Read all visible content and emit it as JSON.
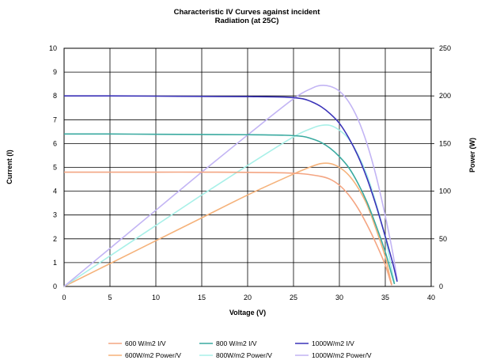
{
  "chart_data": {
    "type": "line",
    "title": "Characteristic IV Curves against incident",
    "subtitle": "Radiation (at 25C)",
    "xlabel": "Voltage (V)",
    "ylabel": "Current (I)",
    "y2label": "Power (W)",
    "xlim": [
      0,
      40
    ],
    "ylim": [
      0,
      10
    ],
    "y2lim": [
      0,
      250
    ],
    "xticks": [
      "0",
      "5",
      "10",
      "15",
      "20",
      "25",
      "30",
      "35",
      "40"
    ],
    "yticks": [
      "0",
      "1",
      "2",
      "3",
      "4",
      "5",
      "6",
      "7",
      "8",
      "9",
      "10"
    ],
    "y2ticks": [
      "0",
      "50",
      "100",
      "150",
      "200",
      "250"
    ],
    "grid": true,
    "legend_position": "bottom",
    "series": [
      {
        "name": "600 W/m2 I/V",
        "axis": "left",
        "color": "#f4a582",
        "points": [
          [
            0,
            4.8
          ],
          [
            5,
            4.8
          ],
          [
            10,
            4.8
          ],
          [
            15,
            4.8
          ],
          [
            20,
            4.79
          ],
          [
            24,
            4.77
          ],
          [
            26,
            4.73
          ],
          [
            28,
            4.62
          ],
          [
            29,
            4.5
          ],
          [
            30,
            4.25
          ],
          [
            31,
            3.85
          ],
          [
            32,
            3.3
          ],
          [
            33,
            2.6
          ],
          [
            34,
            1.8
          ],
          [
            35,
            0.9
          ],
          [
            35.5,
            0.3
          ],
          [
            35.7,
            0.05
          ]
        ]
      },
      {
        "name": "800 W/m2 I/V",
        "axis": "left",
        "color": "#3aaaa0",
        "points": [
          [
            0,
            6.4
          ],
          [
            5,
            6.4
          ],
          [
            10,
            6.39
          ],
          [
            15,
            6.38
          ],
          [
            20,
            6.37
          ],
          [
            24,
            6.35
          ],
          [
            26,
            6.3
          ],
          [
            27,
            6.2
          ],
          [
            28,
            6.05
          ],
          [
            29,
            5.8
          ],
          [
            30,
            5.45
          ],
          [
            31,
            5.0
          ],
          [
            32,
            4.35
          ],
          [
            33,
            3.55
          ],
          [
            34,
            2.55
          ],
          [
            35,
            1.45
          ],
          [
            35.7,
            0.5
          ],
          [
            36,
            0.1
          ]
        ]
      },
      {
        "name": "1000W/m2 I/V",
        "axis": "left",
        "color": "#3a32b8",
        "points": [
          [
            0,
            8.0
          ],
          [
            5,
            8.0
          ],
          [
            10,
            7.99
          ],
          [
            15,
            7.98
          ],
          [
            20,
            7.97
          ],
          [
            24,
            7.95
          ],
          [
            26,
            7.88
          ],
          [
            27,
            7.75
          ],
          [
            28,
            7.55
          ],
          [
            29,
            7.25
          ],
          [
            30,
            6.85
          ],
          [
            31,
            6.25
          ],
          [
            32,
            5.5
          ],
          [
            33,
            4.55
          ],
          [
            34,
            3.4
          ],
          [
            35,
            2.1
          ],
          [
            35.8,
            1.0
          ],
          [
            36.3,
            0.2
          ]
        ]
      },
      {
        "name": "600W/m2 Power/V",
        "axis": "right",
        "color": "#f5b27a",
        "points": [
          [
            0,
            0
          ],
          [
            5,
            24
          ],
          [
            10,
            48
          ],
          [
            15,
            72
          ],
          [
            20,
            96
          ],
          [
            25,
            118
          ],
          [
            27,
            126
          ],
          [
            28,
            129
          ],
          [
            29,
            129
          ],
          [
            30,
            125
          ],
          [
            31,
            117
          ],
          [
            32,
            104
          ],
          [
            33,
            86
          ],
          [
            34,
            60
          ],
          [
            35,
            31
          ],
          [
            35.5,
            10
          ],
          [
            35.7,
            2
          ]
        ]
      },
      {
        "name": "800W/m2 Power/V",
        "axis": "right",
        "color": "#a8f0e8",
        "points": [
          [
            0,
            0
          ],
          [
            5,
            32
          ],
          [
            10,
            64
          ],
          [
            15,
            96
          ],
          [
            20,
            127
          ],
          [
            25,
            157
          ],
          [
            27,
            166
          ],
          [
            28,
            169
          ],
          [
            29,
            169
          ],
          [
            30,
            164
          ],
          [
            31,
            155
          ],
          [
            32,
            139
          ],
          [
            33,
            117
          ],
          [
            34,
            87
          ],
          [
            35,
            51
          ],
          [
            35.7,
            18
          ],
          [
            36,
            4
          ]
        ]
      },
      {
        "name": "1000W/m2 Power/V",
        "axis": "right",
        "color": "#c2b4f4",
        "points": [
          [
            0,
            0
          ],
          [
            5,
            40
          ],
          [
            10,
            80
          ],
          [
            15,
            120
          ],
          [
            20,
            159
          ],
          [
            25,
            197
          ],
          [
            27,
            208
          ],
          [
            28,
            211
          ],
          [
            29,
            210
          ],
          [
            30,
            205
          ],
          [
            31,
            194
          ],
          [
            32,
            176
          ],
          [
            33,
            150
          ],
          [
            34,
            116
          ],
          [
            35,
            74
          ],
          [
            35.8,
            36
          ],
          [
            36.3,
            7
          ]
        ]
      }
    ]
  }
}
